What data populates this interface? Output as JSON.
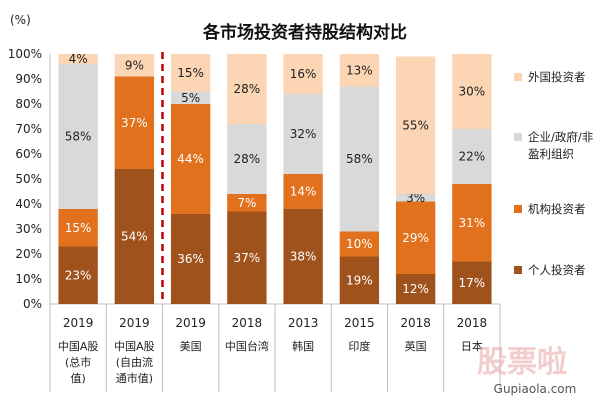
{
  "chart_data": {
    "type": "bar",
    "stacked": true,
    "title": "各市场投资者持股结构对比",
    "ylabel": "(%)",
    "ylim": [
      0,
      100
    ],
    "yticks": [
      "0%",
      "10%",
      "20%",
      "30%",
      "40%",
      "50%",
      "60%",
      "70%",
      "80%",
      "90%",
      "100%"
    ],
    "grid": false,
    "legend_position": "right",
    "categories": [
      {
        "year": "2019",
        "market": [
          "中国A股",
          "(总市",
          "值)"
        ]
      },
      {
        "year": "2019",
        "market": [
          "中国A股",
          "(自由流",
          "通市值)"
        ]
      },
      {
        "year": "2019",
        "market": [
          "美国"
        ]
      },
      {
        "year": "2018",
        "market": [
          "中国台湾"
        ]
      },
      {
        "year": "2013",
        "market": [
          "韩国"
        ]
      },
      {
        "year": "2015",
        "market": [
          "印度"
        ]
      },
      {
        "year": "2018",
        "market": [
          "英国"
        ]
      },
      {
        "year": "2018",
        "market": [
          "日本"
        ]
      }
    ],
    "series": [
      {
        "name": "个人投资者",
        "color": "#a0521d",
        "label_color": "#ffffff",
        "values": [
          23,
          54,
          36,
          37,
          38,
          19,
          12,
          17
        ]
      },
      {
        "name": "机构投资者",
        "color": "#e2711d",
        "label_color": "#ffffff",
        "values": [
          15,
          37,
          44,
          7,
          14,
          10,
          29,
          31
        ]
      },
      {
        "name": "企业/政府/非盈利组织",
        "color": "#d9d9d9",
        "label_color": "#222222",
        "values": [
          58,
          0,
          5,
          28,
          32,
          58,
          3,
          22
        ]
      },
      {
        "name": "外国投资者",
        "color": "#fcd5b4",
        "label_color": "#222222",
        "values": [
          4,
          9,
          15,
          28,
          16,
          13,
          55,
          30
        ]
      }
    ],
    "value_labels": [
      [
        "23%",
        "54%",
        "36%",
        "37%",
        "38%",
        "19%",
        "12%",
        "17%"
      ],
      [
        "15%",
        "37%",
        "44%",
        "7%",
        "14%",
        "10%",
        "29%",
        "31%"
      ],
      [
        "58%",
        "",
        "5%",
        "28%",
        "32%",
        "58%",
        "3%",
        "22%"
      ],
      [
        "4%",
        "9%",
        "15%",
        "28%",
        "16%",
        "13%",
        "55%",
        "30%"
      ]
    ],
    "legend": [
      {
        "lines": [
          "外国投资者"
        ],
        "color": "#fcd5b4"
      },
      {
        "lines": [
          "企业/政府/非",
          "盈利组织"
        ],
        "color": "#d9d9d9"
      },
      {
        "lines": [
          "机构投资者"
        ],
        "color": "#e2711d"
      },
      {
        "lines": [
          "个人投资者"
        ],
        "color": "#a0521d"
      }
    ],
    "divider_after_category": 1,
    "divider_color": "#c00000"
  },
  "watermark": {
    "text": "股票啦",
    "url": "Gupiaola.com"
  }
}
